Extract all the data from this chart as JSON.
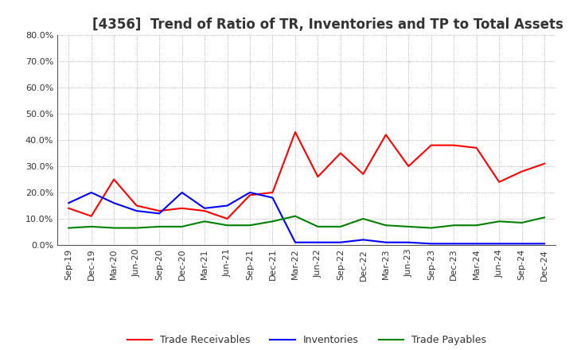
{
  "title": "[4356]  Trend of Ratio of TR, Inventories and TP to Total Assets",
  "x_labels": [
    "Sep-19",
    "Dec-19",
    "Mar-20",
    "Jun-20",
    "Sep-20",
    "Dec-20",
    "Mar-21",
    "Jun-21",
    "Sep-21",
    "Dec-21",
    "Mar-22",
    "Jun-22",
    "Sep-22",
    "Dec-22",
    "Mar-23",
    "Jun-23",
    "Sep-23",
    "Dec-23",
    "Mar-24",
    "Jun-24",
    "Sep-24",
    "Dec-24"
  ],
  "trade_receivables": [
    0.14,
    0.11,
    0.25,
    0.15,
    0.13,
    0.14,
    0.13,
    0.1,
    0.19,
    0.2,
    0.43,
    0.26,
    0.35,
    0.27,
    0.42,
    0.3,
    0.38,
    0.38,
    0.37,
    0.24,
    0.28,
    0.31
  ],
  "inventories": [
    0.16,
    0.2,
    0.16,
    0.13,
    0.12,
    0.2,
    0.14,
    0.15,
    0.2,
    0.18,
    0.01,
    0.01,
    0.01,
    0.02,
    0.01,
    0.01,
    0.005,
    0.005,
    0.005,
    0.005,
    0.005,
    0.005
  ],
  "trade_payables": [
    0.065,
    0.07,
    0.065,
    0.065,
    0.07,
    0.07,
    0.09,
    0.075,
    0.075,
    0.09,
    0.11,
    0.07,
    0.07,
    0.1,
    0.075,
    0.07,
    0.065,
    0.075,
    0.075,
    0.09,
    0.085,
    0.105
  ],
  "tr_color": "#FF0000",
  "inv_color": "#0000FF",
  "tp_color": "#008000",
  "ylim": [
    0.0,
    0.8
  ],
  "yticks": [
    0.0,
    0.1,
    0.2,
    0.3,
    0.4,
    0.5,
    0.6,
    0.7,
    0.8
  ],
  "bg_color": "#FFFFFF",
  "plot_bg_color": "#FFFFFF",
  "grid_color": "#888888",
  "title_color": "#333333",
  "legend_labels": [
    "Trade Receivables",
    "Inventories",
    "Trade Payables"
  ],
  "title_fontsize": 12,
  "tick_fontsize": 8,
  "legend_fontsize": 9
}
